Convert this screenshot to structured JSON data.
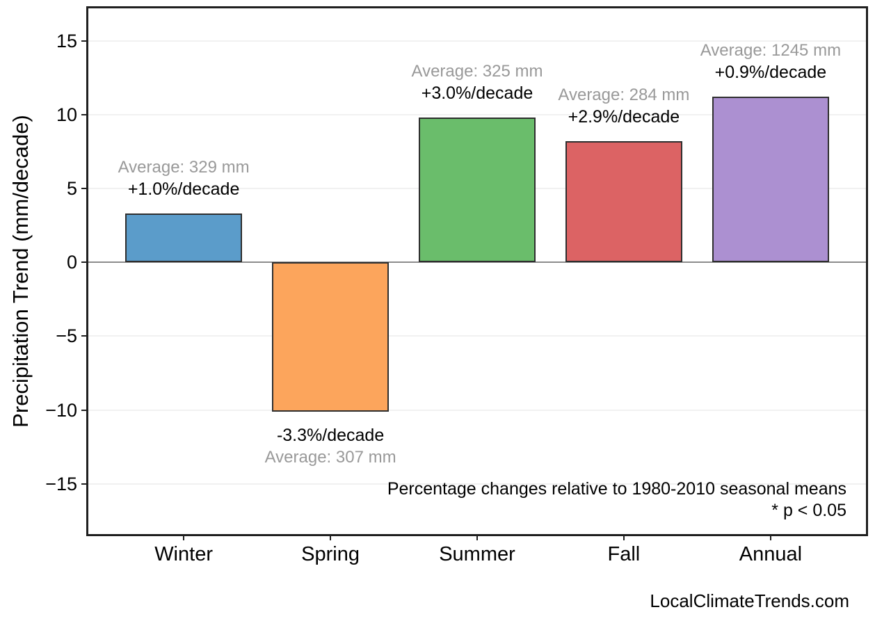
{
  "chart_data": {
    "type": "bar",
    "title": "",
    "xlabel": "",
    "ylabel": "Precipitation Trend (mm/decade)",
    "categories": [
      "Winter",
      "Spring",
      "Summer",
      "Fall",
      "Annual"
    ],
    "values": [
      3.3,
      -10.1,
      9.8,
      8.2,
      11.2
    ],
    "bars": [
      {
        "category": "Winter",
        "value": 3.3,
        "color": "#5b9cca",
        "average_label": "Average: 329 mm",
        "trend_label": "+1.0%/decade"
      },
      {
        "category": "Spring",
        "value": -10.1,
        "color": "#fca55c",
        "average_label": "Average: 307 mm",
        "trend_label": "-3.3%/decade"
      },
      {
        "category": "Summer",
        "value": 9.8,
        "color": "#6abd6b",
        "average_label": "Average: 325 mm",
        "trend_label": "+3.0%/decade"
      },
      {
        "category": "Fall",
        "value": 8.2,
        "color": "#dc6364",
        "average_label": "Average: 284 mm",
        "trend_label": "+2.9%/decade"
      },
      {
        "category": "Annual",
        "value": 11.2,
        "color": "#ac90d1",
        "average_label": "Average: 1245 mm",
        "trend_label": "+0.9%/decade"
      }
    ],
    "yticks": [
      15,
      10,
      5,
      0,
      -5,
      -10,
      -15
    ],
    "ylim": [
      -18.4,
      17.2
    ],
    "grid": "horizontal-faint",
    "zero_line": true,
    "legend": "none",
    "annotations": [
      "Percentage changes relative to 1980-2010 seasonal means",
      "* p < 0.05"
    ]
  },
  "footer": {
    "watermark": "LocalClimateTrends.com"
  },
  "colors": {
    "background": "#ffffff",
    "bar_border": "#2e2e2e",
    "panel_border": "#1f1f1f",
    "zero_line": "#8c8c8c",
    "gridline": "#f1f1f1",
    "average_label_text": "#999999",
    "main_text": "#000000"
  }
}
